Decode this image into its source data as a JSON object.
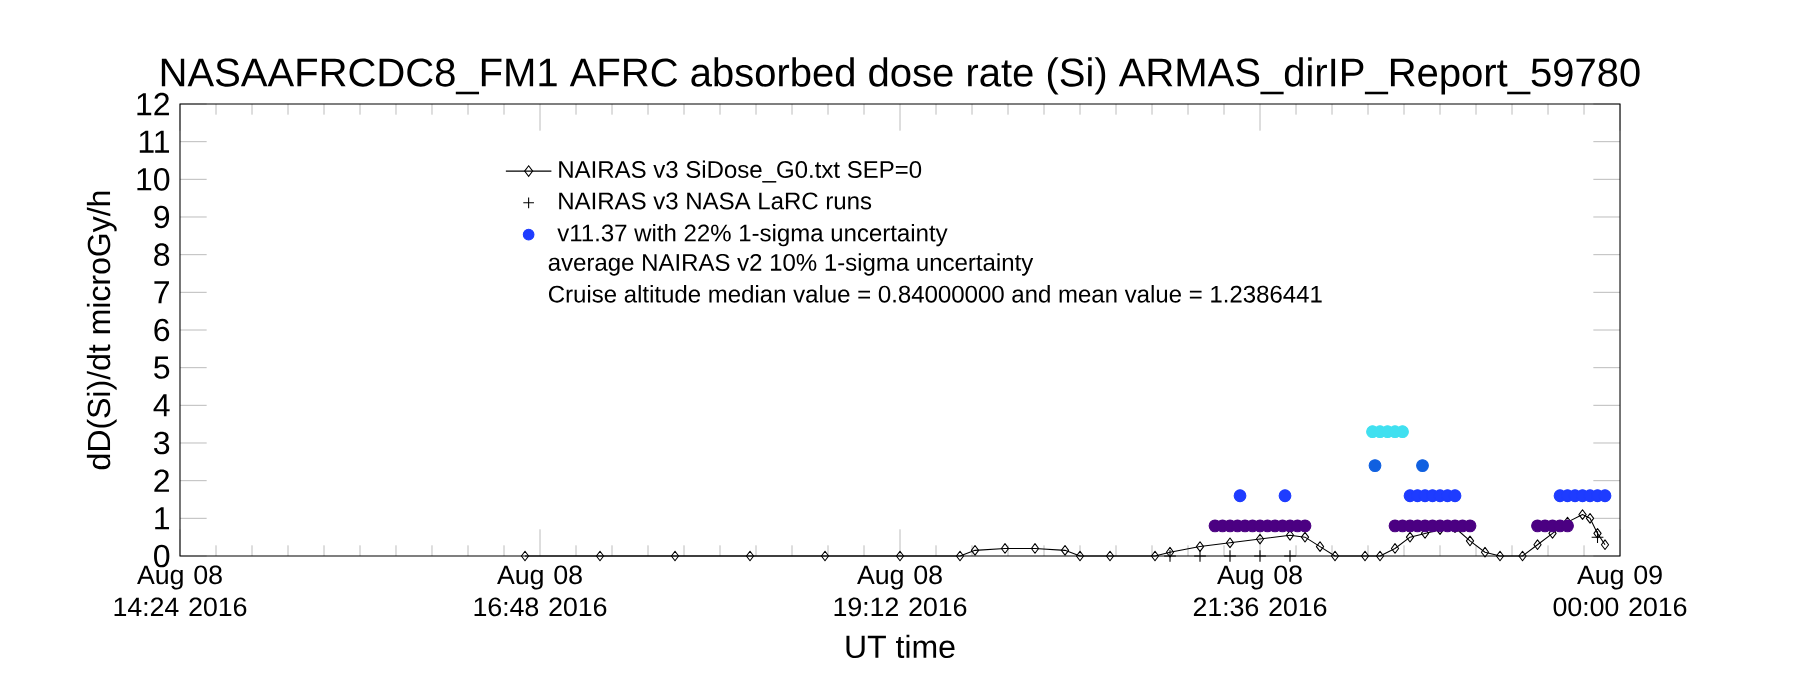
{
  "chart_data": {
    "type": "scatter",
    "title": "NASAAFRCDC8_FM1 AFRC absorbed dose rate (Si) ARMAS_dirIP_Report_59780",
    "xlabel": "UT time",
    "ylabel": "dD(Si)/dt microGy/h",
    "xlim": [
      "2016-08-08T14:24",
      "2016-08-09T00:00"
    ],
    "ylim": [
      0,
      12
    ],
    "xticks": [
      {
        "value": "2016-08-08T14:24",
        "label": "Aug 08 14:24 2016"
      },
      {
        "value": "2016-08-08T16:48",
        "label": "Aug 08 16:48 2016"
      },
      {
        "value": "2016-08-08T19:12",
        "label": "Aug 08 19:12 2016"
      },
      {
        "value": "2016-08-08T21:36",
        "label": "Aug 08 21:36 2016"
      },
      {
        "value": "2016-08-09T00:00",
        "label": "Aug 09 00:00 2016"
      }
    ],
    "yticks": [
      0,
      1,
      2,
      3,
      4,
      5,
      6,
      7,
      8,
      9,
      10,
      11,
      12
    ],
    "legend": "top left",
    "annotations": [
      "average NAIRAS v2 10% 1-sigma uncertainty",
      "Cruise altitude median value = 0.84000000 and mean value = 1.2386441"
    ],
    "series": [
      {
        "name": "NAIRAS v3 SiDose_G0.txt SEP=0",
        "type": "line",
        "marker": "diamond",
        "line_style": "solid",
        "color": "#000000",
        "x": [
          "2016-08-08T16:42",
          "2016-08-08T17:12",
          "2016-08-08T17:42",
          "2016-08-08T18:12",
          "2016-08-08T18:42",
          "2016-08-08T19:12",
          "2016-08-08T19:36",
          "2016-08-08T19:42",
          "2016-08-08T19:54",
          "2016-08-08T20:06",
          "2016-08-08T20:18",
          "2016-08-08T20:24",
          "2016-08-08T20:36",
          "2016-08-08T20:54",
          "2016-08-08T21:00",
          "2016-08-08T21:12",
          "2016-08-08T21:24",
          "2016-08-08T21:36",
          "2016-08-08T21:48",
          "2016-08-08T21:54",
          "2016-08-08T22:00",
          "2016-08-08T22:06",
          "2016-08-08T22:18",
          "2016-08-08T22:24",
          "2016-08-08T22:30",
          "2016-08-08T22:36",
          "2016-08-08T22:42",
          "2016-08-08T22:48",
          "2016-08-08T22:54",
          "2016-08-08T23:00",
          "2016-08-08T23:06",
          "2016-08-08T23:12",
          "2016-08-08T23:21",
          "2016-08-08T23:27",
          "2016-08-08T23:33",
          "2016-08-08T23:39",
          "2016-08-08T23:45",
          "2016-08-08T23:48",
          "2016-08-08T23:51",
          "2016-08-08T23:54"
        ],
        "values": [
          0,
          0,
          0,
          0,
          0,
          0,
          0,
          0.15,
          0.2,
          0.2,
          0.15,
          0,
          0,
          0,
          0.1,
          0.25,
          0.35,
          0.45,
          0.55,
          0.5,
          0.25,
          0,
          0,
          0,
          0.2,
          0.5,
          0.6,
          0.7,
          0.75,
          0.4,
          0.1,
          0,
          0,
          0.3,
          0.6,
          0.9,
          1.1,
          1.0,
          0.6,
          0.3
        ]
      },
      {
        "name": "NAIRAS v3 NASA LaRC runs",
        "marker": "cross",
        "color": "#000000",
        "x": [
          "2016-08-08T21:00",
          "2016-08-08T21:12",
          "2016-08-08T21:24",
          "2016-08-08T21:36",
          "2016-08-08T21:48",
          "2016-08-08T23:51"
        ],
        "values": [
          0,
          0,
          0,
          0,
          0,
          0.5
        ]
      },
      {
        "name": "v11.37 with 22% 1-sigma uncertainty",
        "marker": "circle",
        "color": "#1e3cff",
        "x": [
          "2016-08-08T21:18",
          "2016-08-08T21:21",
          "2016-08-08T21:24",
          "2016-08-08T21:27",
          "2016-08-08T21:30",
          "2016-08-08T21:33",
          "2016-08-08T21:36",
          "2016-08-08T21:39",
          "2016-08-08T21:42",
          "2016-08-08T21:45",
          "2016-08-08T21:48",
          "2016-08-08T21:51",
          "2016-08-08T21:54",
          "2016-08-08T22:30",
          "2016-08-08T22:33",
          "2016-08-08T22:36",
          "2016-08-08T22:39",
          "2016-08-08T22:42",
          "2016-08-08T22:45",
          "2016-08-08T22:48",
          "2016-08-08T22:51",
          "2016-08-08T22:54",
          "2016-08-08T22:57",
          "2016-08-08T23:00",
          "2016-08-08T23:27",
          "2016-08-08T23:30",
          "2016-08-08T23:33",
          "2016-08-08T23:36",
          "2016-08-08T23:39",
          "2016-08-08T21:28",
          "2016-08-08T21:46",
          "2016-08-08T22:36",
          "2016-08-08T22:39",
          "2016-08-08T22:42",
          "2016-08-08T22:45",
          "2016-08-08T22:48",
          "2016-08-08T22:51",
          "2016-08-08T22:54",
          "2016-08-08T23:36",
          "2016-08-08T23:39",
          "2016-08-08T23:42",
          "2016-08-08T23:45",
          "2016-08-08T23:48",
          "2016-08-08T23:51",
          "2016-08-08T23:54",
          "2016-08-08T22:21",
          "2016-08-08T22:24",
          "2016-08-08T22:27",
          "2016-08-08T22:30",
          "2016-08-08T22:33",
          "2016-08-08T22:22",
          "2016-08-08T22:41"
        ],
        "values": [
          0.8,
          0.8,
          0.8,
          0.8,
          0.8,
          0.8,
          0.8,
          0.8,
          0.8,
          0.8,
          0.8,
          0.8,
          0.8,
          0.8,
          0.8,
          0.8,
          0.8,
          0.8,
          0.8,
          0.8,
          0.8,
          0.8,
          0.8,
          0.8,
          0.8,
          0.8,
          0.8,
          0.8,
          0.8,
          1.6,
          1.6,
          1.6,
          1.6,
          1.6,
          1.6,
          1.6,
          1.6,
          1.6,
          1.6,
          1.6,
          1.6,
          1.6,
          1.6,
          1.6,
          1.6,
          3.3,
          3.3,
          3.3,
          3.3,
          3.3,
          2.4,
          2.4
        ],
        "colors": [
          "#4b0082",
          "#4b0082",
          "#4b0082",
          "#4b0082",
          "#4b0082",
          "#4b0082",
          "#4b0082",
          "#4b0082",
          "#4b0082",
          "#4b0082",
          "#4b0082",
          "#4b0082",
          "#4b0082",
          "#4b0082",
          "#4b0082",
          "#4b0082",
          "#4b0082",
          "#4b0082",
          "#4b0082",
          "#4b0082",
          "#4b0082",
          "#4b0082",
          "#4b0082",
          "#4b0082",
          "#4b0082",
          "#4b0082",
          "#4b0082",
          "#4b0082",
          "#4b0082",
          "#1e3cff",
          "#1e3cff",
          "#1e3cff",
          "#1e3cff",
          "#1e3cff",
          "#1e3cff",
          "#1e3cff",
          "#1e3cff",
          "#1e3cff",
          "#1e3cff",
          "#1e3cff",
          "#1e3cff",
          "#1e3cff",
          "#1e3cff",
          "#1e3cff",
          "#1e3cff",
          "#40e0f0",
          "#40e0f0",
          "#40e0f0",
          "#40e0f0",
          "#40e0f0",
          "#1060e0",
          "#1060e0"
        ]
      }
    ]
  }
}
